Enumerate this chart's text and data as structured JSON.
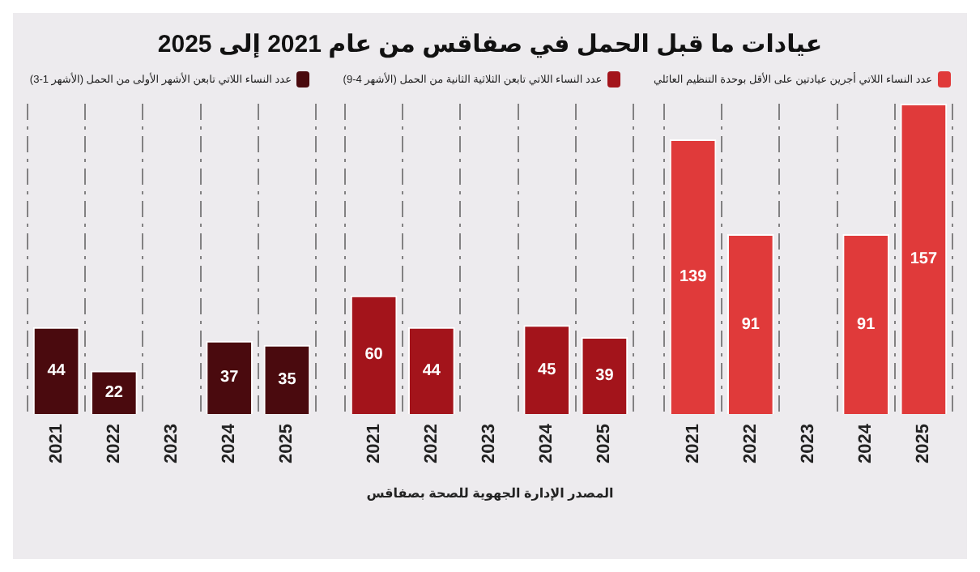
{
  "chart_data": [
    {
      "type": "bar",
      "title": "عيادات ما قبل الحمل في صفاقس من عام 2021 إلى 2025",
      "annotations": [
        "المصدر الإدارة الجهوية للصحة بصفاقس"
      ],
      "categories": [
        "2021",
        "2022",
        "2023",
        "2024",
        "2025"
      ],
      "tick_labels": "x",
      "data_labels": true,
      "grid": "x",
      "legend": "top",
      "series": [
        {
          "name": "عدد النساء اللاتي أجرين عيادتين على الأقل بوحدة التنظيم العائلي",
          "color": "#e03a3a",
          "values": [
            139,
            91,
            null,
            91,
            157
          ]
        }
      ]
    },
    {
      "type": "bar",
      "categories": [
        "2021",
        "2022",
        "2023",
        "2024",
        "2025"
      ],
      "tick_labels": "x",
      "data_labels": true,
      "grid": "x",
      "legend": "top",
      "series": [
        {
          "name": "عدد النساء اللاتي تابعن الثلاثية الثانية من الحمل (الأشهر 4-9)",
          "color": "#a3141b",
          "values": [
            60,
            44,
            null,
            45,
            39
          ]
        }
      ]
    },
    {
      "type": "bar",
      "categories": [
        "2021",
        "2022",
        "2023",
        "2024",
        "2025"
      ],
      "tick_labels": "x",
      "data_labels": true,
      "grid": "x",
      "legend": "top",
      "series": [
        {
          "name": "عدد النساء اللاتي تابعن الأشهر الأولى من الحمل (الأشهر 1-3)",
          "color": "#4a0a0e",
          "values": [
            44,
            22,
            null,
            37,
            35
          ]
        }
      ]
    }
  ]
}
